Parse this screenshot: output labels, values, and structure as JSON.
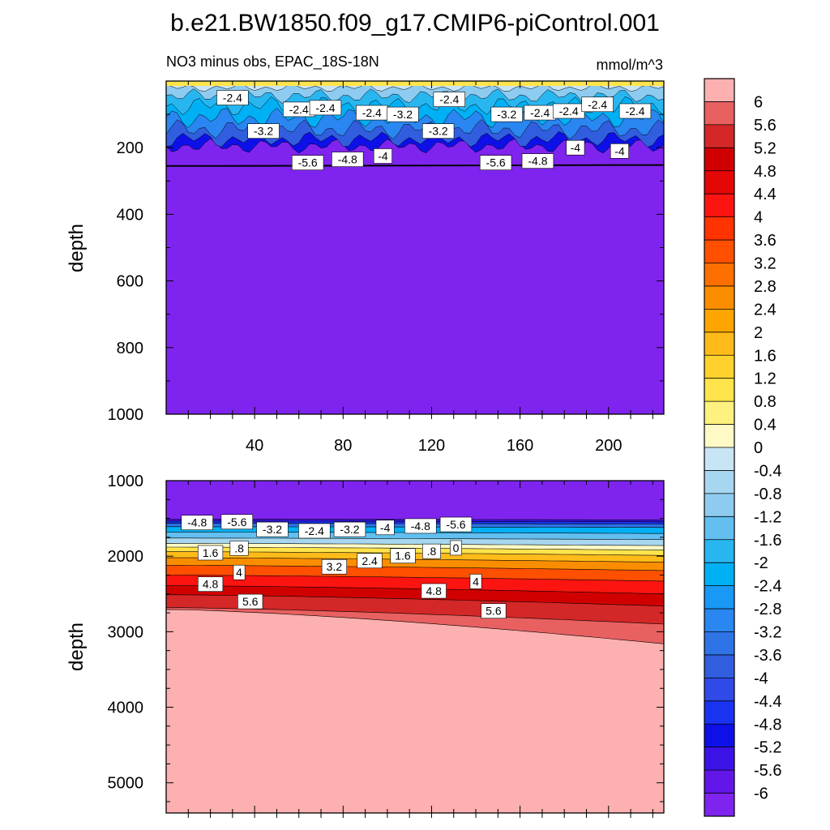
{
  "figure_title": "b.e21.BW1850.f09_g17.CMIP6-piControl.001",
  "chart_data": [
    {
      "type": "contour",
      "panel": "upper",
      "title": "NO3 minus obs, EPAC_18S-18N",
      "units": "mmol/m^3",
      "ylabel": "depth",
      "xlabel": "",
      "xlim": [
        0,
        225
      ],
      "ylim": [
        0,
        1000
      ],
      "y_reversed": true,
      "xticks": [
        40,
        80,
        120,
        160,
        200
      ],
      "yticks": [
        200,
        400,
        600,
        800,
        1000
      ],
      "contour_labels": [
        {
          "text": "-2.4",
          "x": 30,
          "y": 50
        },
        {
          "text": "-2.4",
          "x": 60,
          "y": 85
        },
        {
          "text": "-2.4",
          "x": 72,
          "y": 80
        },
        {
          "text": "-2.4",
          "x": 93,
          "y": 95
        },
        {
          "text": "-3.2",
          "x": 107,
          "y": 100
        },
        {
          "text": "-2.4",
          "x": 128,
          "y": 55
        },
        {
          "text": "-3.2",
          "x": 123,
          "y": 150
        },
        {
          "text": "-3.2",
          "x": 154,
          "y": 100
        },
        {
          "text": "-2.4",
          "x": 169,
          "y": 95
        },
        {
          "text": "-2.4",
          "x": 182,
          "y": 90
        },
        {
          "text": "-2.4",
          "x": 195,
          "y": 70
        },
        {
          "text": "-2.4",
          "x": 212,
          "y": 90
        },
        {
          "text": "-3.2",
          "x": 44,
          "y": 150
        },
        {
          "text": "-5.6",
          "x": 64,
          "y": 245
        },
        {
          "text": "-4.8",
          "x": 82,
          "y": 235
        },
        {
          "text": "-4",
          "x": 98,
          "y": 225
        },
        {
          "text": "-5.6",
          "x": 149,
          "y": 245
        },
        {
          "text": "-4.8",
          "x": 168,
          "y": 240
        },
        {
          "text": "-4",
          "x": 185,
          "y": 200
        },
        {
          "text": "-4",
          "x": 205,
          "y": 210
        }
      ]
    },
    {
      "type": "contour",
      "panel": "lower",
      "title": "",
      "ylabel": "depth",
      "xlabel": "",
      "xlim": [
        0,
        225
      ],
      "ylim": [
        1000,
        5400
      ],
      "y_reversed": true,
      "yticks": [
        1000,
        2000,
        3000,
        4000,
        5000
      ],
      "contour_labels": [
        {
          "text": "-4.8",
          "x": 14,
          "y": 1555
        },
        {
          "text": "-5.6",
          "x": 32,
          "y": 1545
        },
        {
          "text": "-3.2",
          "x": 48,
          "y": 1645
        },
        {
          "text": "-2.4",
          "x": 67,
          "y": 1665
        },
        {
          "text": "-3.2",
          "x": 83,
          "y": 1645
        },
        {
          "text": "-4",
          "x": 99,
          "y": 1620
        },
        {
          "text": "-4.8",
          "x": 115,
          "y": 1600
        },
        {
          "text": "-5.6",
          "x": 131,
          "y": 1580
        },
        {
          "text": "1.6",
          "x": 20,
          "y": 1955
        },
        {
          "text": ".8",
          "x": 33,
          "y": 1895
        },
        {
          "text": "3.2",
          "x": 76,
          "y": 2140
        },
        {
          "text": "2.4",
          "x": 92,
          "y": 2060
        },
        {
          "text": "1.6",
          "x": 107,
          "y": 1995
        },
        {
          "text": ".8",
          "x": 120,
          "y": 1935
        },
        {
          "text": "0",
          "x": 131,
          "y": 1890
        },
        {
          "text": "4",
          "x": 33,
          "y": 2215
        },
        {
          "text": "4.8",
          "x": 20,
          "y": 2370
        },
        {
          "text": "5.6",
          "x": 38,
          "y": 2600
        },
        {
          "text": "4.8",
          "x": 121,
          "y": 2460
        },
        {
          "text": "4",
          "x": 140,
          "y": 2335
        },
        {
          "text": "5.6",
          "x": 148,
          "y": 2725
        }
      ]
    }
  ],
  "colorbar": {
    "labels": [
      "6",
      "5.6",
      "5.2",
      "4.8",
      "4.4",
      "4",
      "3.6",
      "3.2",
      "2.8",
      "2.4",
      "2",
      "1.6",
      "1.2",
      "0.8",
      "0.4",
      "0",
      "-0.4",
      "-0.8",
      "-1.2",
      "-1.6",
      "-2",
      "-2.4",
      "-2.8",
      "-3.2",
      "-3.6",
      "-4",
      "-4.4",
      "-4.8",
      "-5.2",
      "-5.6",
      "-6"
    ],
    "colors": [
      "#fdb0b0",
      "#e96060",
      "#d42727",
      "#d10000",
      "#e50606",
      "#fb1410",
      "#ff3300",
      "#ff5000",
      "#fd7000",
      "#fb8e00",
      "#ffa500",
      "#ffbb1a",
      "#ffd12e",
      "#ffe44c",
      "#fff17f",
      "#fffac5",
      "#c8e5f5",
      "#a7d6f0",
      "#8ecbf0",
      "#62bff0",
      "#28b6f0",
      "#00b0f5",
      "#1a98f5",
      "#2a86f0",
      "#2e74e6",
      "#315edf",
      "#2f4ae6",
      "#1a33f0",
      "#0e10e8",
      "#3b13e6",
      "#6316ea",
      "#7f24ee"
    ]
  }
}
